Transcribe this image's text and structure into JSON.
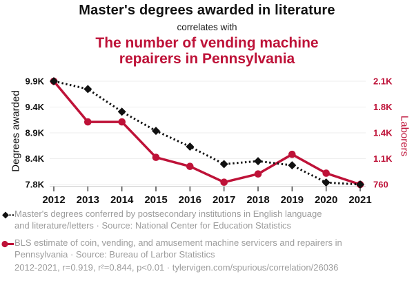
{
  "header": {
    "title": "Master's degrees awarded in literature",
    "connector": "correlates with",
    "subtitle": "The number of vending machine repairers in Pennsylvania"
  },
  "chart_data": {
    "type": "line",
    "x": [
      2012,
      2013,
      2014,
      2015,
      2016,
      2017,
      2018,
      2019,
      2020,
      2021
    ],
    "series": [
      {
        "id": "masters-degrees",
        "name": "Master's degrees awarded in literature",
        "axis": "left",
        "color": "#111111",
        "style": "dotted",
        "marker": "diamond",
        "values": [
          9940,
          9780,
          9320,
          8930,
          8610,
          8255,
          8315,
          8230,
          7880,
          7840
        ]
      },
      {
        "id": "vending-repairers",
        "name": "The number of vending machine repairers in Pennsylvania",
        "axis": "right",
        "color": "#be1238",
        "style": "solid",
        "marker": "circle",
        "values": [
          2130,
          1590,
          1590,
          1120,
          1000,
          790,
          900,
          1160,
          910,
          760
        ]
      }
    ],
    "left_axis": {
      "label": "Degrees awarded",
      "min": 7840,
      "max": 9940,
      "tick_labels": [
        "7.8K",
        "8.4K",
        "8.9K",
        "9.4K",
        "9.9K"
      ]
    },
    "right_axis": {
      "label": "Laborers",
      "min": 760,
      "max": 2130,
      "tick_labels": [
        "760",
        "1.1K",
        "1.4K",
        "1.8K",
        "2.1K"
      ]
    },
    "grid": true,
    "legend_position": "bottom"
  },
  "legend": {
    "items": [
      {
        "marker": "diamond-dotted",
        "lines": [
          "Master's degrees conferred by postsecondary institutions in English language",
          "and literature/letters · Source: National Center for Education Statistics"
        ]
      },
      {
        "marker": "circle-solid",
        "lines": [
          "BLS estimate of coin, vending, and amusement machine servicers and repairers in",
          "Pennsylvania · Source: Bureau of Larbor Statistics"
        ]
      }
    ],
    "footnote": "2012-2021, r=0.919, r²=0.844, p<0.01 · tylervigen.com/spurious/correlation/26036"
  },
  "colors": {
    "accent_red": "#be1238",
    "series_black": "#111111",
    "legend_gray": "#9c9c9c",
    "gridline": "#eeeeee",
    "axis_line": "#cbcbcb",
    "tick_mark": "#3a3a3a"
  }
}
